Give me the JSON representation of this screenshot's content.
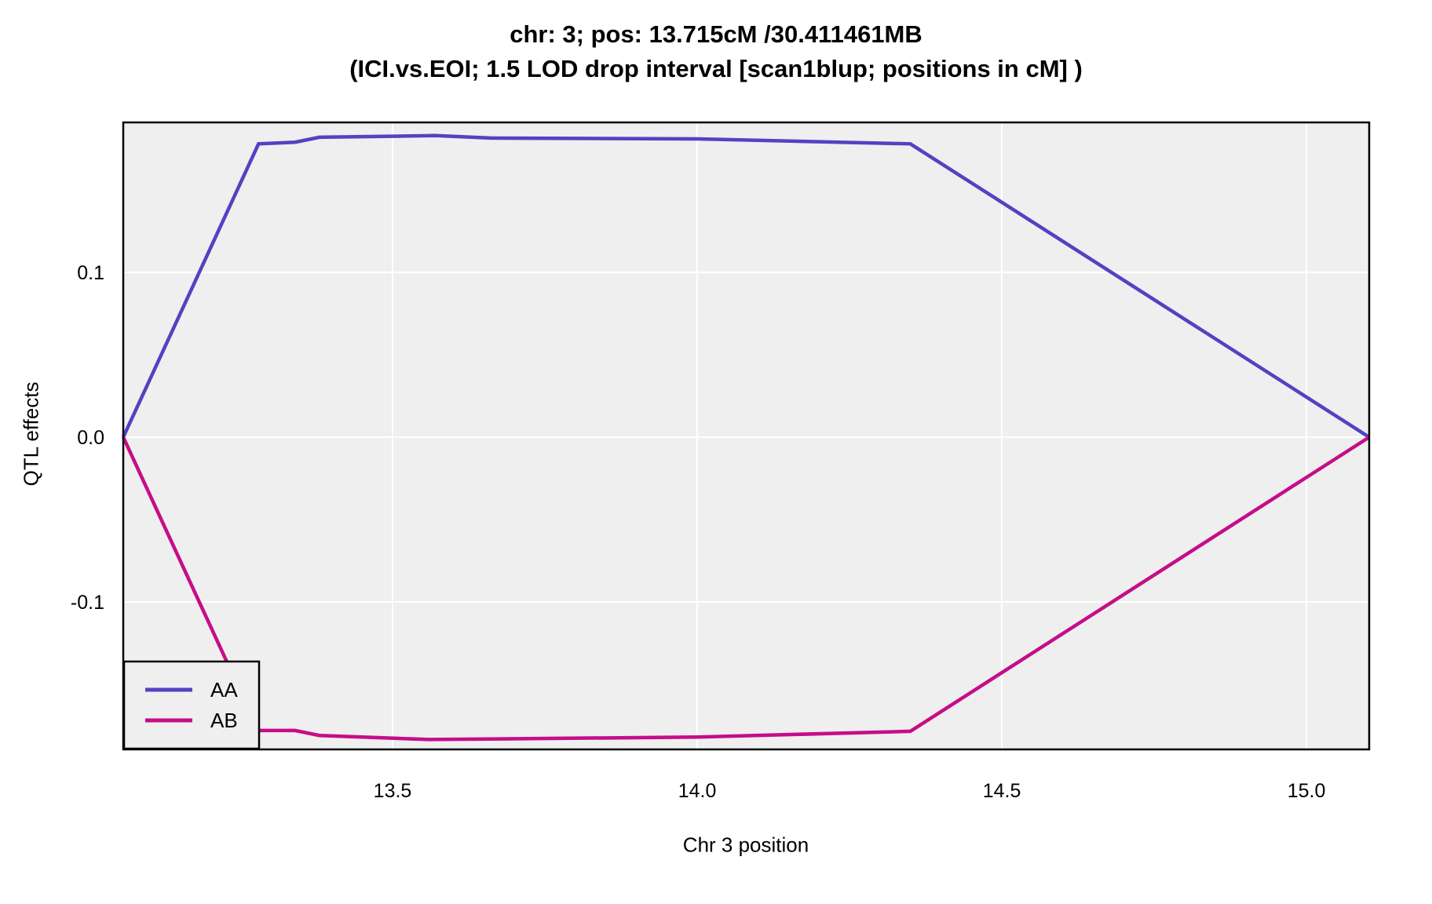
{
  "title": {
    "line1": "chr: 3; pos: 13.715cM /30.411461MB",
    "line2": "(ICI.vs.EOI; 1.5 LOD drop interval [scan1blup; positions in cM] )"
  },
  "axes": {
    "x_label": "Chr 3 position",
    "y_label": "QTL effects"
  },
  "colors": {
    "background": "#FFFFFF",
    "panel_bg": "#EFEFEF",
    "grid": "#FFFFFF",
    "panel_border": "#000000",
    "tick_text": "#000000",
    "series_AA": "#5143C2",
    "series_AB": "#C60D88"
  },
  "legend": {
    "position": "bottom-left",
    "entries": [
      {
        "label": "AA",
        "color": "#5143C2"
      },
      {
        "label": "AB",
        "color": "#C60D88"
      }
    ]
  },
  "chart_data": {
    "type": "line",
    "title": "chr: 3; pos: 13.715cM /30.411461MB",
    "subtitle": "(ICI.vs.EOI; 1.5 LOD drop interval [scan1blup; positions in cM] )",
    "xlabel": "Chr 3 position",
    "ylabel": "QTL effects",
    "xlim": [
      13.058,
      15.103
    ],
    "ylim": [
      -0.1895,
      0.191
    ],
    "grid": "major white gridlines on gray panel, no minor gridlines, no tick marks",
    "legend_position": "bottom-left inside panel",
    "x_ticks": {
      "values": [
        13.5,
        14.0,
        14.5,
        15.0
      ],
      "labels": [
        "13.5",
        "14.0",
        "14.5",
        "15.0"
      ]
    },
    "y_ticks": {
      "values": [
        0.1,
        0.0,
        -0.1
      ],
      "labels": [
        "0.1",
        "0.0",
        "-0.1"
      ]
    },
    "series": [
      {
        "name": "AA",
        "color": "#5143C2",
        "points": [
          [
            13.058,
            0.0
          ],
          [
            13.28,
            0.178
          ],
          [
            13.34,
            0.179
          ],
          [
            13.38,
            0.182
          ],
          [
            13.57,
            0.183
          ],
          [
            13.66,
            0.1815
          ],
          [
            14.0,
            0.181
          ],
          [
            14.35,
            0.178
          ],
          [
            15.103,
            0.0
          ]
        ]
      },
      {
        "name": "AB",
        "color": "#C60D88",
        "points": [
          [
            13.058,
            0.0
          ],
          [
            13.28,
            -0.178
          ],
          [
            13.34,
            -0.178
          ],
          [
            13.38,
            -0.181
          ],
          [
            13.56,
            -0.1835
          ],
          [
            14.0,
            -0.182
          ],
          [
            14.35,
            -0.1785
          ],
          [
            15.103,
            0.0
          ]
        ]
      }
    ]
  }
}
